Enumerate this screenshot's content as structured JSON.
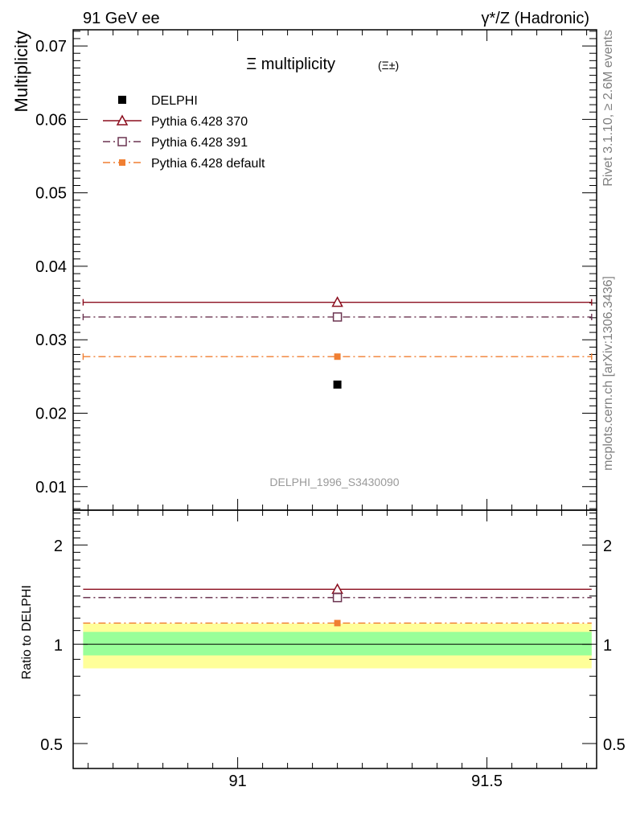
{
  "header": {
    "left": "91 GeV ee",
    "right": "γ*/Z (Hadronic)"
  },
  "side_labels": {
    "rivet": "Rivet 3.1.10, ≥ 2.6M events",
    "mcplots": "mcplots.cern.ch [arXiv:1306.3436]"
  },
  "colors": {
    "data": "#000000",
    "pythia_370": "#8b0e1e",
    "pythia_391": "#6b3450",
    "pythia_default": "#f07f32",
    "band_inner": "#99ff99",
    "band_outer": "#ffff99"
  },
  "chart_data": [
    {
      "type": "scatter",
      "title": "Ξ multiplicity (Ξ±)",
      "title_main": "Ξ multiplicity",
      "title_sub": "(Ξ±)",
      "ylabel": "Multiplicity",
      "watermark": "DELPHI_1996_S3430090",
      "xlim": [
        90.67,
        91.72
      ],
      "ylim": [
        0.0068,
        0.0722
      ],
      "yticks": [
        0.01,
        0.02,
        0.03,
        0.04,
        0.05,
        0.06,
        0.07
      ],
      "ytick_labels": [
        "0.01",
        "0.02",
        "0.03",
        "0.04",
        "0.05",
        "0.06",
        "0.07"
      ],
      "legend_position": "top-left",
      "series": [
        {
          "name": "DELPHI",
          "marker": "filled-square",
          "style": "none",
          "x": 91.2,
          "xerr": [
            90.69,
            91.71
          ],
          "y": 0.0239
        },
        {
          "name": "Pythia 6.428 370",
          "marker": "open-triangle",
          "style": "solid",
          "x": 91.2,
          "xerr": [
            90.69,
            91.71
          ],
          "y": 0.0351
        },
        {
          "name": "Pythia 6.428 391",
          "marker": "open-square",
          "style": "dashdot",
          "x": 91.2,
          "xerr": [
            90.69,
            91.71
          ],
          "y": 0.0331
        },
        {
          "name": "Pythia 6.428 default",
          "marker": "filled-square-small",
          "style": "dashdot",
          "x": 91.2,
          "xerr": [
            90.69,
            91.71
          ],
          "y": 0.0277
        }
      ]
    },
    {
      "type": "scatter",
      "ylabel": "Ratio to DELPHI",
      "xlim": [
        90.67,
        91.72
      ],
      "ylim": [
        0.42,
        2.55
      ],
      "log_y": true,
      "yticks": [
        0.5,
        1,
        2
      ],
      "ytick_labels": [
        "0.5",
        "1",
        "2"
      ],
      "xticks": [
        91,
        91.5
      ],
      "xtick_labels": [
        "91",
        "91.5"
      ],
      "bands": {
        "x": [
          90.69,
          91.71
        ],
        "inner": [
          0.925,
          1.09
        ],
        "outer": [
          0.845,
          1.155
        ]
      },
      "series": [
        {
          "name": "Pythia 6.428 370",
          "y": 1.468
        },
        {
          "name": "Pythia 6.428 391",
          "y": 1.385
        },
        {
          "name": "Pythia 6.428 default",
          "y": 1.159
        }
      ]
    }
  ]
}
